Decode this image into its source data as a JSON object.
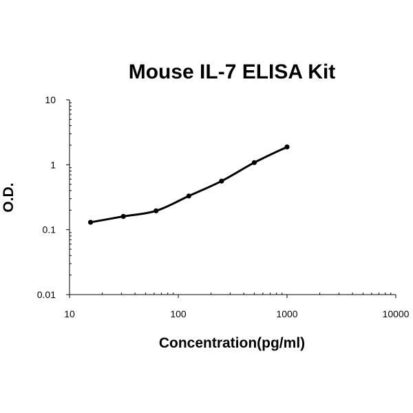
{
  "chart_data": {
    "type": "scatter",
    "title": "Mouse IL-7 ELISA Kit",
    "xlabel": "Concentration(pg/ml)",
    "ylabel": "O.D.",
    "x_scale": "log",
    "y_scale": "log",
    "xlim": [
      10,
      10000
    ],
    "ylim": [
      0.01,
      10
    ],
    "x_tick_labels": [
      "10",
      "100",
      "1000",
      "10000"
    ],
    "y_tick_labels": [
      "0.01",
      "0.1",
      "1",
      "10"
    ],
    "grid": false,
    "legend": "none",
    "trendline": true,
    "series": [
      {
        "x": [
          15.6,
          31.25,
          62.5,
          125,
          250,
          500,
          1000
        ],
        "y": [
          0.13,
          0.16,
          0.195,
          0.33,
          0.56,
          1.08,
          1.88
        ]
      }
    ],
    "colors": {
      "points": "#000000",
      "curve": "#000000"
    }
  }
}
